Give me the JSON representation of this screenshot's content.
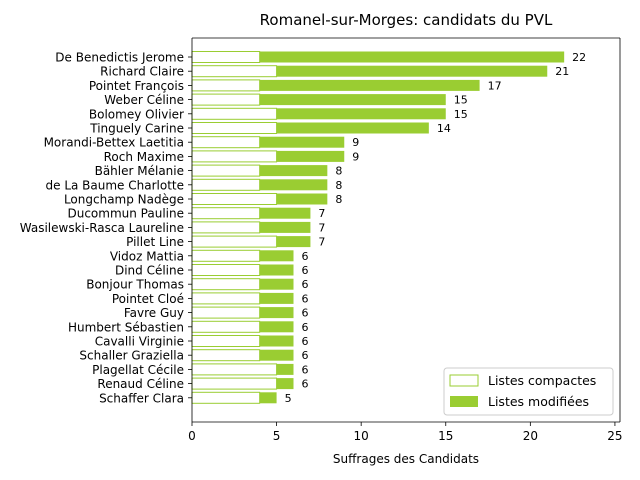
{
  "chart_data": {
    "type": "bar",
    "orientation": "horizontal",
    "stacked": true,
    "title": "Romanel-sur-Morges: candidats du PVL",
    "xlabel": "Suffrages des Candidats",
    "ylabel": "",
    "xlim": [
      0,
      25.3
    ],
    "xticks": [
      0,
      5,
      10,
      15,
      20,
      25
    ],
    "grid": false,
    "legend_position": "lower-right",
    "colors": {
      "compact": "#ffffff",
      "compact_edge": "#9acd32",
      "modified": "#9acd32"
    },
    "categories": [
      "De Benedictis Jerome",
      "Richard Claire",
      "Pointet François",
      "Weber Céline",
      "Bolomey Olivier",
      "Tinguely Carine",
      "Morandi-Bettex Laetitia",
      "Roch Maxime",
      "Bähler Mélanie",
      "de La Baume Charlotte",
      "Longchamp Nadège",
      "Ducommun Pauline",
      "Wasilewski-Rasca Laureline",
      "Pillet Line",
      "Vidoz Mattia",
      "Dind Céline",
      "Bonjour Thomas",
      "Pointet Cloé",
      "Favre Guy",
      "Humbert Sébastien",
      "Cavalli Virginie",
      "Schaller Graziella",
      "Plagellat Cécile",
      "Renaud Céline",
      "Schaffer Clara"
    ],
    "series": [
      {
        "name": "Listes compactes",
        "values": [
          4,
          5,
          4,
          4,
          5,
          5,
          4,
          5,
          4,
          4,
          5,
          4,
          4,
          5,
          4,
          4,
          4,
          4,
          4,
          4,
          4,
          4,
          5,
          5,
          4
        ]
      },
      {
        "name": "Listes modifiées",
        "values": [
          18,
          16,
          13,
          11,
          10,
          9,
          5,
          4,
          4,
          4,
          3,
          3,
          3,
          2,
          2,
          2,
          2,
          2,
          2,
          2,
          2,
          2,
          1,
          1,
          1
        ]
      }
    ],
    "totals": [
      22,
      21,
      17,
      15,
      15,
      14,
      9,
      9,
      8,
      8,
      8,
      7,
      7,
      7,
      6,
      6,
      6,
      6,
      6,
      6,
      6,
      6,
      6,
      6,
      5
    ]
  }
}
